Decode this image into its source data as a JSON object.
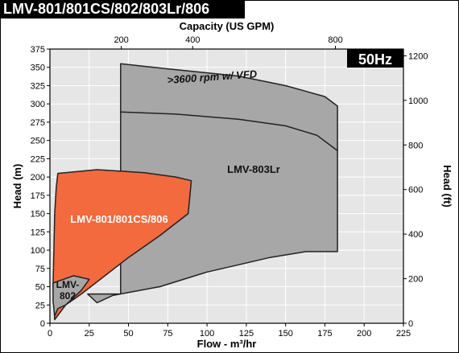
{
  "header": {
    "title": "LMV-801/801CS/802/803Lr/806"
  },
  "badge": {
    "text": "50Hz"
  },
  "chart_data": {
    "type": "area",
    "title": "LMV-801/801CS/802/803Lr/806",
    "frequency_label": "50Hz",
    "xlabel": "Flow - m³/hr",
    "x2label": "Capacity (US GPM)",
    "ylabel": "Head (m)",
    "y2label": "Head (ft)",
    "xlim": [
      0,
      225
    ],
    "ylim": [
      0,
      375
    ],
    "x_ticks": [
      "0",
      "25",
      "50",
      "75",
      "100",
      "125",
      "150",
      "175",
      "200",
      "225"
    ],
    "y_ticks": [
      "0",
      "25",
      "50",
      "75",
      "100",
      "125",
      "150",
      "175",
      "200",
      "225",
      "250",
      "275",
      "300",
      "325",
      "350",
      "375"
    ],
    "x2_ticks": [
      "200",
      "400",
      "800"
    ],
    "y2_ticks": [
      "0",
      "200",
      "400",
      "600",
      "800",
      "1000",
      "1200"
    ],
    "grid": true,
    "colors": {
      "background": "#e6e6e6",
      "grid": "#ffffff",
      "gray_region": "#a7a7a7",
      "orange_region": "#f26a3d",
      "badge": "#000000"
    },
    "regions": [
      {
        "name": "LMV-803Lr",
        "color": "#a7a7a7",
        "outline": [
          [
            45,
            40
          ],
          [
            45,
            355
          ],
          [
            75,
            348
          ],
          [
            120,
            338
          ],
          [
            150,
            325
          ],
          [
            175,
            310
          ],
          [
            183,
            297
          ],
          [
            183,
            98
          ],
          [
            163,
            98
          ],
          [
            140,
            90
          ],
          [
            120,
            80
          ],
          [
            100,
            70
          ],
          [
            70,
            50
          ],
          [
            40,
            38
          ],
          [
            30,
            28
          ],
          [
            24,
            40
          ],
          [
            40,
            40
          ]
        ]
      },
      {
        "name": "LMV-801/801CS/806",
        "color": "#f26a3d",
        "outline": [
          [
            5,
            205
          ],
          [
            30,
            210
          ],
          [
            60,
            206
          ],
          [
            80,
            200
          ],
          [
            90,
            195
          ],
          [
            88,
            150
          ],
          [
            70,
            120
          ],
          [
            50,
            90
          ],
          [
            35,
            65
          ],
          [
            20,
            40
          ],
          [
            10,
            25
          ],
          [
            3,
            5
          ],
          [
            2,
            50
          ],
          [
            3,
            150
          ],
          [
            4,
            185
          ]
        ]
      },
      {
        "name": "LMV-802",
        "color": "#a7a7a7",
        "outline": [
          [
            2,
            55
          ],
          [
            15,
            65
          ],
          [
            25,
            60
          ],
          [
            20,
            45
          ],
          [
            15,
            35
          ],
          [
            10,
            25
          ],
          [
            5,
            20
          ],
          [
            3,
            10
          ],
          [
            2,
            30
          ]
        ]
      }
    ],
    "curves": [
      {
        "label": "",
        "points": [
          [
            45,
            289
          ],
          [
            80,
            286
          ],
          [
            120,
            279
          ],
          [
            150,
            270
          ],
          [
            170,
            257
          ],
          [
            183,
            236
          ]
        ]
      }
    ],
    "annotations": [
      ">3600 rpm w/ VFD",
      "LMV-803Lr",
      "LMV-801/801CS/806",
      "LMV-\n802"
    ]
  }
}
